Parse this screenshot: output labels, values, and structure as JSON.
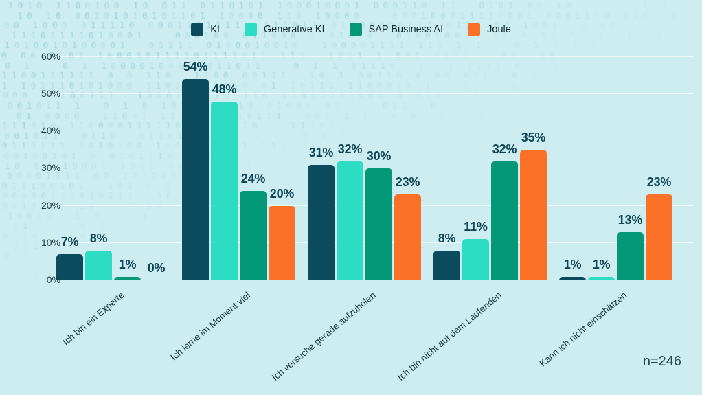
{
  "page": {
    "background_color": "#cdedf1",
    "value_label_color": "#0d4558",
    "axis_text_color": "#1e3c49",
    "gridline_color": "rgba(255,255,255,0.65)"
  },
  "decor": {
    "type": "binary-digit-pattern",
    "chars": "01",
    "color_rgb": [
      96,
      186,
      200
    ]
  },
  "chart_data": {
    "type": "bar",
    "title": "",
    "xlabel": "",
    "ylabel": "",
    "categories": [
      "Ich bin ein Experte",
      "Ich lerne im Moment viel",
      "Ich versuche gerade aufzuholen",
      "Ich bin nicht auf dem Laufenden",
      "Kann ich nicht einschätzen"
    ],
    "series": [
      {
        "name": "KI",
        "color": "#0c4a5e",
        "values": [
          7,
          54,
          31,
          8,
          1
        ]
      },
      {
        "name": "Generative KI",
        "color": "#2cdcc3",
        "values": [
          8,
          48,
          32,
          11,
          1
        ]
      },
      {
        "name": "SAP Business AI",
        "color": "#029877",
        "values": [
          1,
          24,
          30,
          32,
          13
        ]
      },
      {
        "name": "Joule",
        "color": "#fb7127",
        "values": [
          0,
          20,
          23,
          35,
          23
        ]
      }
    ],
    "value_suffix": "%",
    "y_ticks": [
      "0%",
      "10%",
      "20%",
      "30%",
      "40%",
      "50%",
      "60%"
    ],
    "ylim": [
      0,
      60
    ],
    "grid": true,
    "legend_position": "top-center",
    "annotation": "n=246"
  }
}
